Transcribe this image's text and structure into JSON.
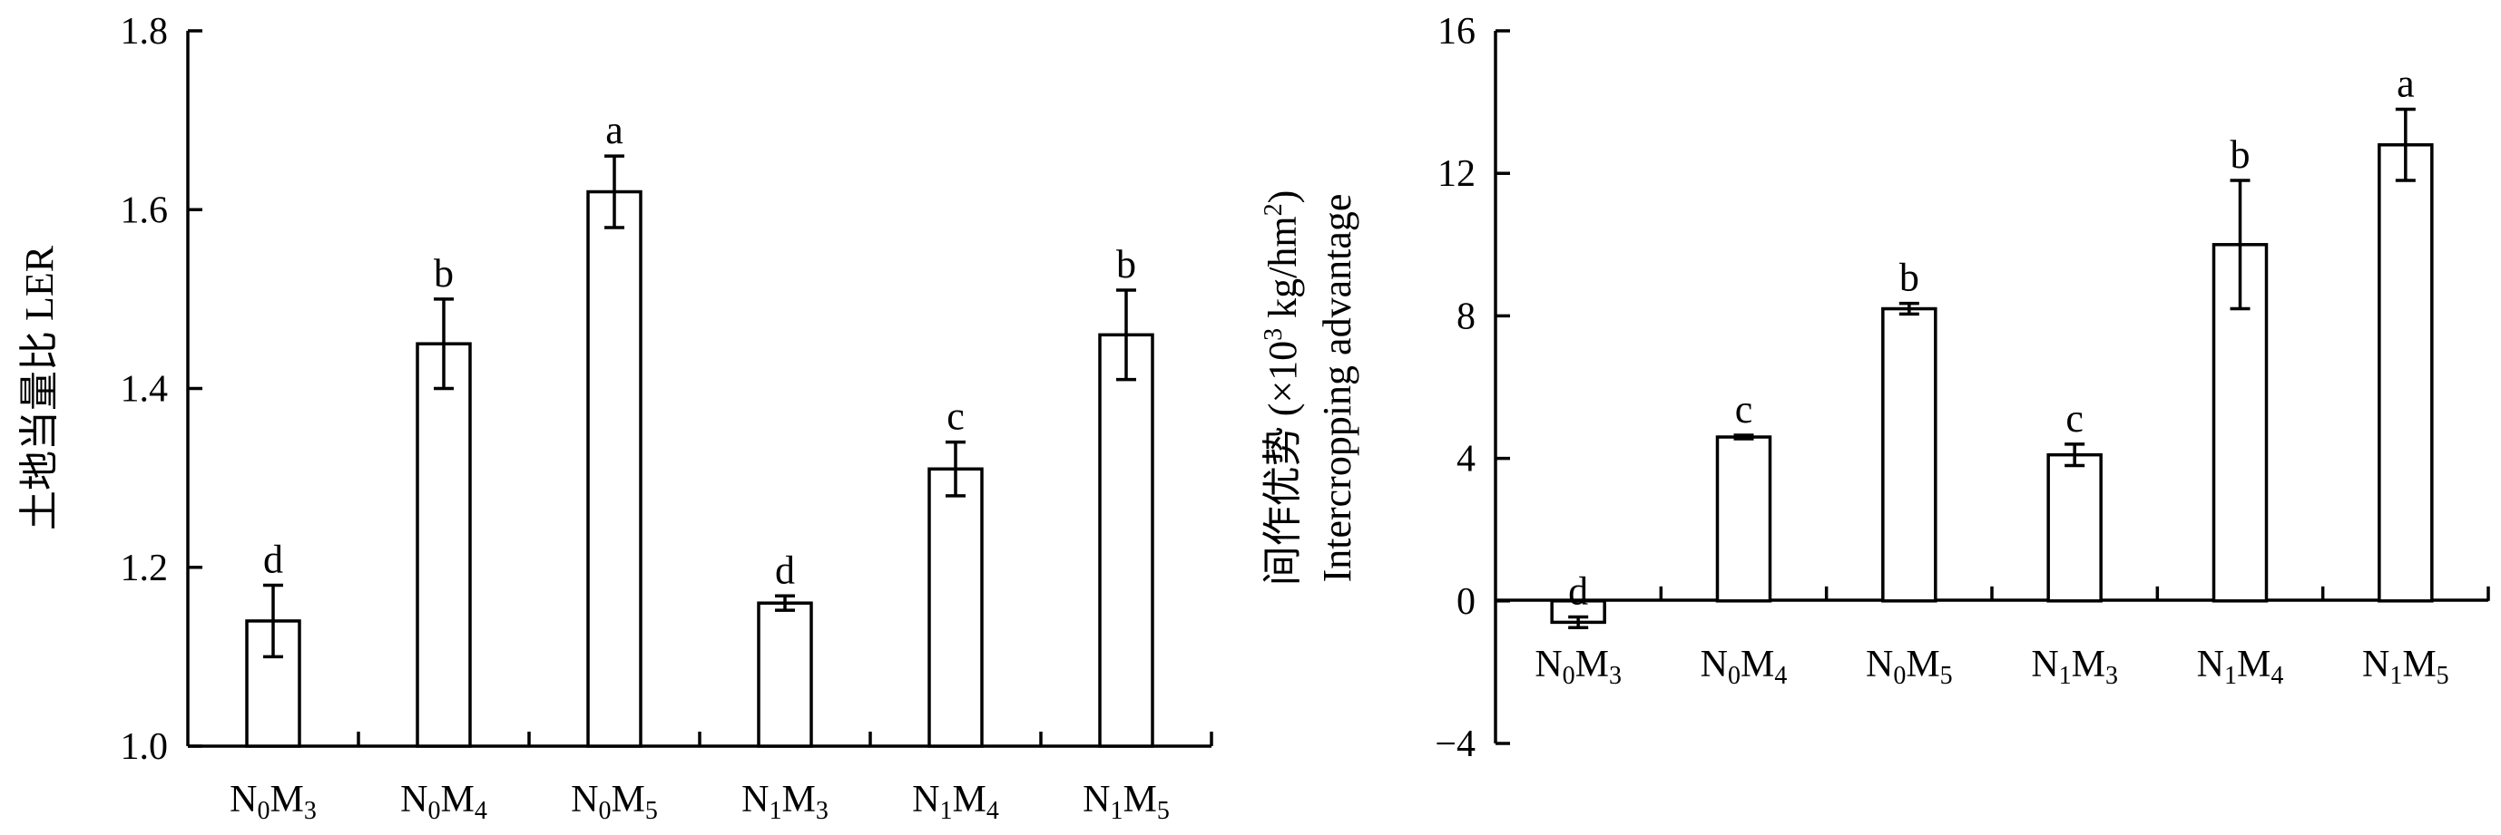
{
  "chart_data": [
    {
      "type": "bar",
      "title": "",
      "ylabel": "土地当量比 LER",
      "xlabel": "",
      "ylim": [
        1.0,
        1.8
      ],
      "yticks": [
        "1.0",
        "1.2",
        "1.4",
        "1.6",
        "1.8"
      ],
      "categories": [
        {
          "main1": "N",
          "sub1": "0",
          "main2": "M",
          "sub2": "3"
        },
        {
          "main1": "N",
          "sub1": "0",
          "main2": "M",
          "sub2": "4"
        },
        {
          "main1": "N",
          "sub1": "0",
          "main2": "M",
          "sub2": "5"
        },
        {
          "main1": "N",
          "sub1": "1",
          "main2": "M",
          "sub2": "3"
        },
        {
          "main1": "N",
          "sub1": "1",
          "main2": "M",
          "sub2": "4"
        },
        {
          "main1": "N",
          "sub1": "1",
          "main2": "M",
          "sub2": "5"
        }
      ],
      "values": [
        1.14,
        1.45,
        1.62,
        1.16,
        1.31,
        1.46
      ],
      "errors": [
        0.04,
        0.05,
        0.04,
        0.008,
        0.03,
        0.05
      ],
      "significance": [
        "d",
        "b",
        "a",
        "d",
        "c",
        "b"
      ],
      "grid": false
    },
    {
      "type": "bar",
      "title": "",
      "ylabel_line1": "间作优势 (×10",
      "ylabel_sup": "3",
      "ylabel_mid": " kg/hm",
      "ylabel_sup2": "2",
      "ylabel_end": ")",
      "ylabel_line2": "Intercropping advantage",
      "xlabel": "",
      "ylim": [
        -4,
        16
      ],
      "yticks": [
        "−4",
        "0",
        "4",
        "8",
        "12",
        "16"
      ],
      "categories": [
        {
          "main1": "N",
          "sub1": "0",
          "main2": "M",
          "sub2": "3"
        },
        {
          "main1": "N",
          "sub1": "0",
          "main2": "M",
          "sub2": "4"
        },
        {
          "main1": "N",
          "sub1": "0",
          "main2": "M",
          "sub2": "5"
        },
        {
          "main1": "N",
          "sub1": "1",
          "main2": "M",
          "sub2": "3"
        },
        {
          "main1": "N",
          "sub1": "1",
          "main2": "M",
          "sub2": "4"
        },
        {
          "main1": "N",
          "sub1": "1",
          "main2": "M",
          "sub2": "5"
        }
      ],
      "values": [
        -0.6,
        4.6,
        8.2,
        4.1,
        10.0,
        12.8
      ],
      "errors": [
        0.15,
        0.05,
        0.15,
        0.3,
        1.8,
        1.0
      ],
      "significance": [
        "d",
        "c",
        "b",
        "c",
        "b",
        "a"
      ],
      "grid": false
    }
  ]
}
